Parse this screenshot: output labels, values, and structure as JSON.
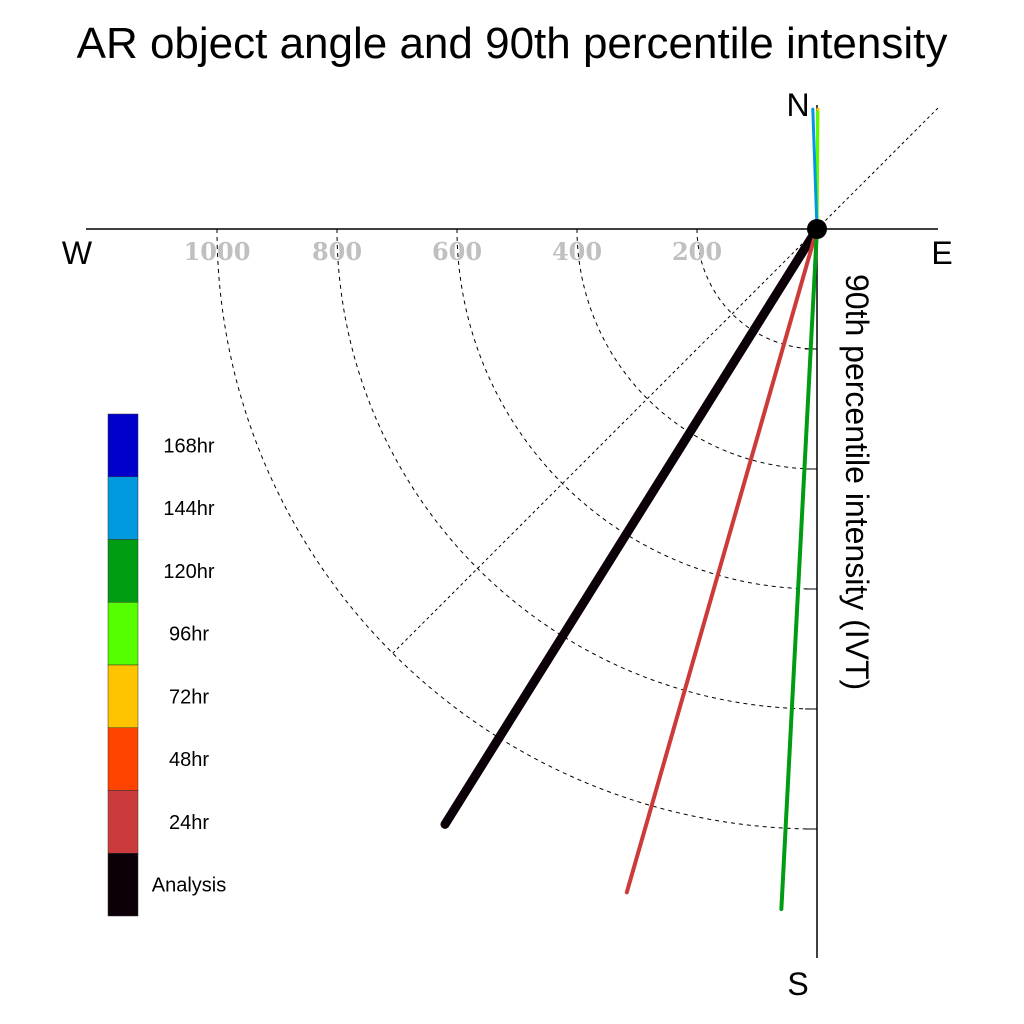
{
  "chart_data": {
    "type": "line",
    "title": "AR object angle and 90th percentile intensity",
    "ylabel": "90th percentile intensity (IVT)",
    "compass": {
      "north": "N",
      "south": "S",
      "east": "E",
      "west": "W"
    },
    "radial_ticks": [
      "200",
      "400",
      "600",
      "800",
      "1000"
    ],
    "radial_range": [
      0,
      1200
    ],
    "series": [
      {
        "name": "Analysis",
        "color": "#0c0008",
        "angle_deg": 212,
        "magnitude": 1170
      },
      {
        "name": "24hr",
        "color": "#cc3b3b",
        "angle_deg": 196,
        "magnitude": 1150
      },
      {
        "name": "48hr",
        "color": "#ff4400",
        "angle_deg": 0,
        "magnitude": 0
      },
      {
        "name": "72hr",
        "color": "#ffc300",
        "angle_deg": 0.5,
        "magnitude": 200
      },
      {
        "name": "96hr",
        "color": "#55ff00",
        "angle_deg": 0.3,
        "magnitude": 195
      },
      {
        "name": "120hr",
        "color": "#009c13",
        "angle_deg": 183,
        "magnitude": 1135
      },
      {
        "name": "144hr",
        "color": "#0099dd",
        "angle_deg": -2,
        "magnitude": 200
      },
      {
        "name": "168hr",
        "color": "#0000cc",
        "angle_deg": 0,
        "magnitude": 0
      }
    ],
    "legend_order": [
      "168hr",
      "144hr",
      "120hr",
      "96hr",
      "72hr",
      "48hr",
      "24hr",
      "Analysis"
    ],
    "legend_position": "left",
    "grid": true
  }
}
